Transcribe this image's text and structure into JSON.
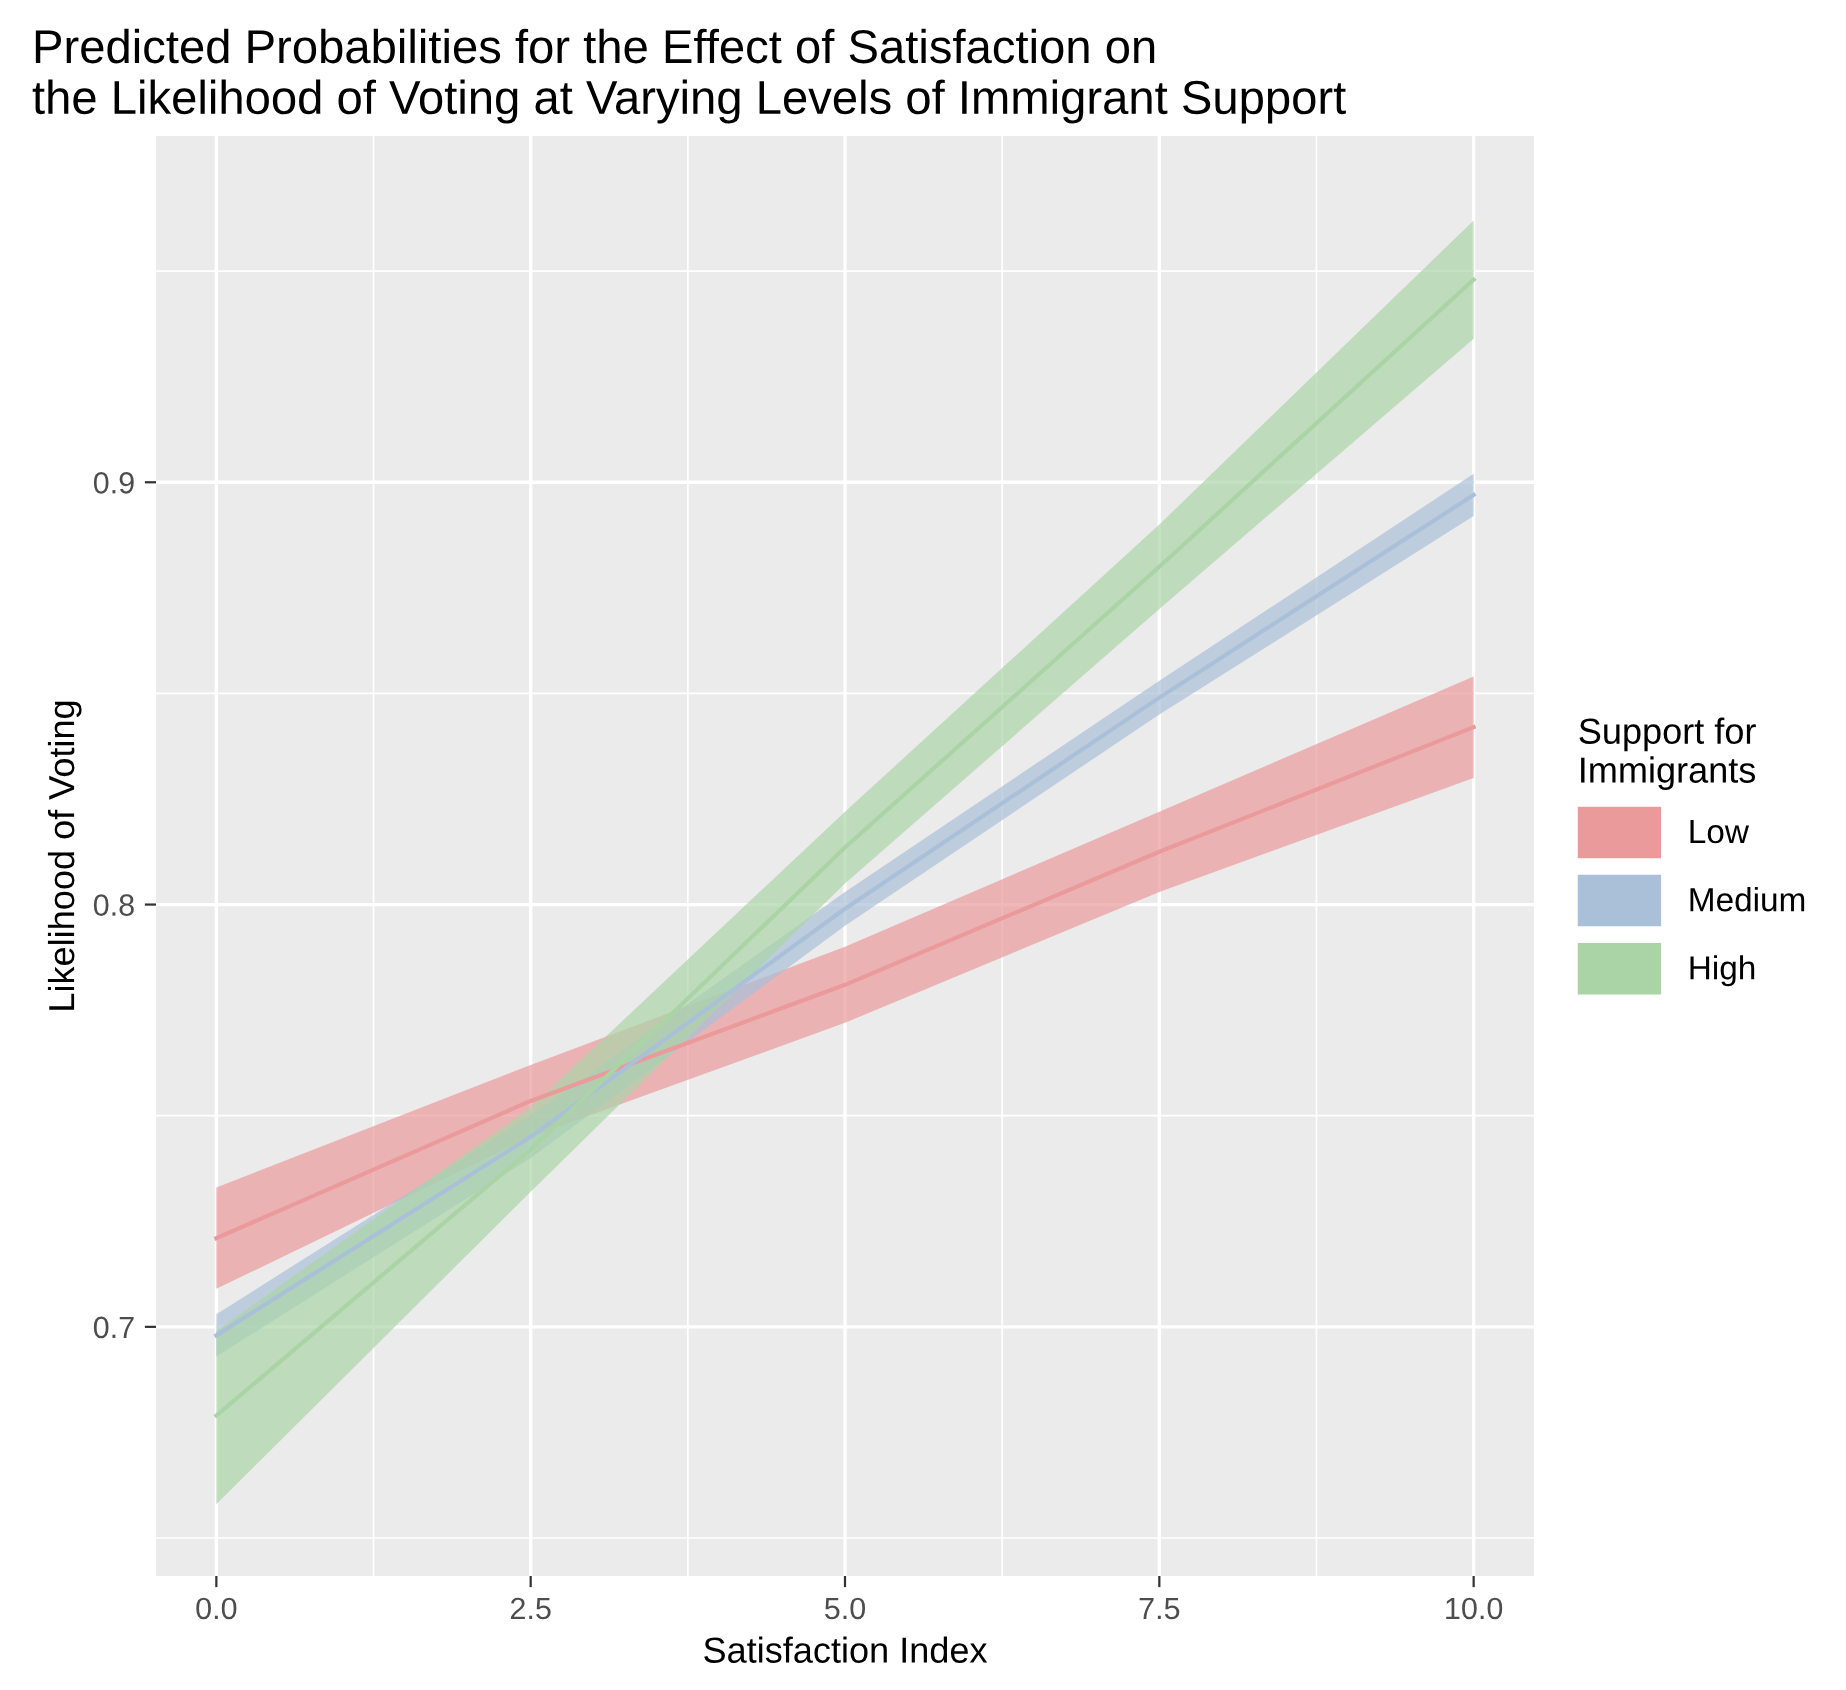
{
  "chart_data": {
    "type": "line",
    "title": "Predicted Probabilities for the Effect of Satisfaction on\nthe Likelihood of Voting at Varying Levels of Immigrant Support",
    "xlabel": "Satisfaction Index",
    "ylabel": "Likelihood of Voting",
    "legend_title": "Support for\nImmigrants",
    "x": [
      0,
      2.5,
      5,
      7.5,
      10
    ],
    "series": [
      {
        "name": "Low",
        "color": "#eb9a9c",
        "values": [
          0.721,
          0.7535,
          0.781,
          0.8125,
          0.842
        ],
        "lower": [
          0.709,
          0.745,
          0.772,
          0.803,
          0.83
        ],
        "upper": [
          0.733,
          0.762,
          0.79,
          0.822,
          0.854
        ]
      },
      {
        "name": "Medium",
        "color": "#a9c0d8",
        "values": [
          0.698,
          0.745,
          0.799,
          0.849,
          0.897
        ],
        "lower": [
          0.693,
          0.74,
          0.795,
          0.845,
          0.892
        ],
        "upper": [
          0.703,
          0.75,
          0.803,
          0.853,
          0.902
        ]
      },
      {
        "name": "High",
        "color": "#abd4a6",
        "values": [
          0.679,
          0.742,
          0.8135,
          0.88,
          0.948
        ],
        "lower": [
          0.658,
          0.732,
          0.805,
          0.87,
          0.934
        ],
        "upper": [
          0.699,
          0.752,
          0.822,
          0.89,
          0.962
        ]
      }
    ],
    "xlim": [
      -0.48,
      10.48
    ],
    "ylim": [
      0.641,
      0.982
    ],
    "xticks": [
      {
        "value": 0,
        "label": "0.0"
      },
      {
        "value": 2.5,
        "label": "2.5"
      },
      {
        "value": 5,
        "label": "5.0"
      },
      {
        "value": 7.5,
        "label": "7.5"
      },
      {
        "value": 10,
        "label": "10.0"
      }
    ],
    "yticks": [
      0.7,
      0.8,
      0.9
    ],
    "grid": true,
    "legend": "right",
    "line_style": "solid"
  }
}
